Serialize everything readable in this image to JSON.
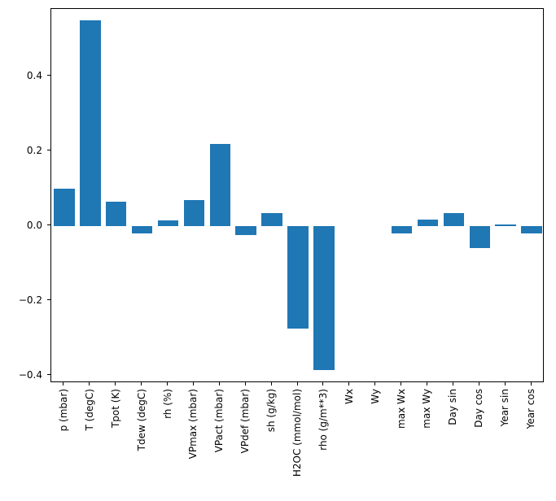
{
  "figure": {
    "background": "#ffffff",
    "bar_color": "#1f77b4",
    "axis_color": "#000000"
  },
  "chart_data": {
    "type": "bar",
    "title": "",
    "xlabel": "",
    "ylabel": "",
    "grid": false,
    "legend": null,
    "ylim": [
      -0.42,
      0.58
    ],
    "categories": [
      "p (mbar)",
      "T (degC)",
      "Tpot (K)",
      "Tdew (degC)",
      "rh (%)",
      "VPmax (mbar)",
      "VPact (mbar)",
      "VPdef (mbar)",
      "sh (g/kg)",
      "H2OC (mmol/mol)",
      "rho (g/m**3)",
      "Wx",
      "Wy",
      "max Wx",
      "max Wy",
      "Day sin",
      "Day cos",
      "Year sin",
      "Year cos"
    ],
    "values": [
      0.1,
      0.55,
      0.065,
      -0.02,
      0.015,
      0.07,
      0.22,
      -0.025,
      0.035,
      -0.275,
      -0.385,
      0.0,
      0.0,
      -0.02,
      0.017,
      0.035,
      -0.06,
      0.004,
      -0.02
    ],
    "yticks": [
      {
        "value": -0.4,
        "label": "−0.4"
      },
      {
        "value": -0.2,
        "label": "−0.2"
      },
      {
        "value": 0.0,
        "label": "0.0"
      },
      {
        "value": 0.2,
        "label": "0.2"
      },
      {
        "value": 0.4,
        "label": "0.4"
      }
    ]
  }
}
